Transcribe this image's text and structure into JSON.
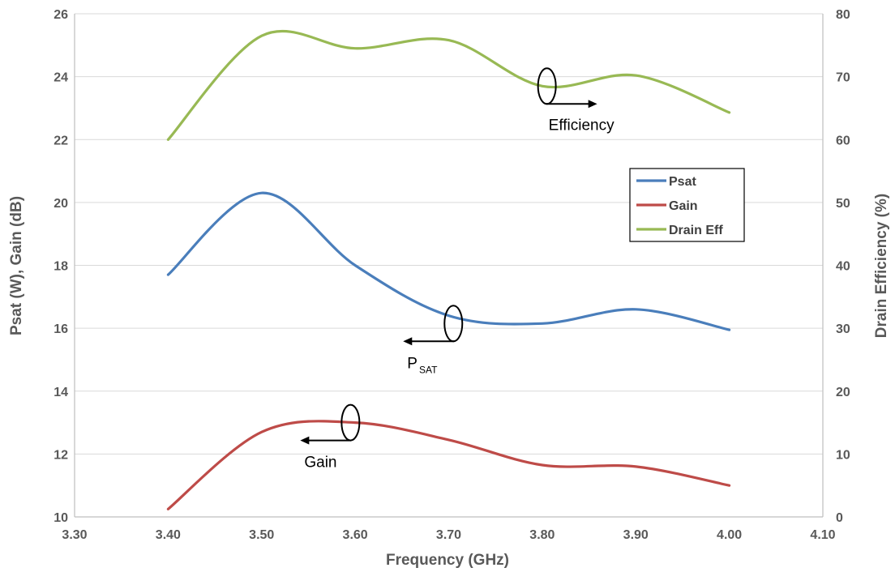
{
  "chart_data": {
    "type": "line",
    "xlabel": "Frequency (GHz)",
    "ylabel_left": "Psat (W), Gain (dB)",
    "ylabel_right": "Drain Efficiency (%)",
    "xlim": [
      3.3,
      4.1
    ],
    "ylim_left": [
      10,
      26
    ],
    "ylim_right": [
      0,
      80
    ],
    "x_ticks": [
      "3.30",
      "3.40",
      "3.50",
      "3.60",
      "3.70",
      "3.80",
      "3.90",
      "4.00",
      "4.10"
    ],
    "y_left_ticks": [
      "10",
      "12",
      "14",
      "16",
      "18",
      "20",
      "22",
      "24",
      "26"
    ],
    "y_right_ticks": [
      "0",
      "10",
      "20",
      "30",
      "40",
      "50",
      "60",
      "70",
      "80"
    ],
    "grid": "horizontal",
    "legend_position": "right",
    "x": [
      3.4,
      3.5,
      3.6,
      3.7,
      3.8,
      3.9,
      4.0
    ],
    "series": [
      {
        "name": "Psat",
        "axis": "left",
        "color": "#4a7ebb",
        "values": [
          17.7,
          20.3,
          18.0,
          16.4,
          16.15,
          16.6,
          15.95
        ]
      },
      {
        "name": "Gain",
        "axis": "left",
        "color": "#be4b48",
        "values": [
          10.25,
          12.7,
          13.0,
          12.45,
          11.65,
          11.6,
          11.0
        ]
      },
      {
        "name": "Drain Eff",
        "axis": "right",
        "color": "#98b954",
        "values": [
          60.0,
          76.5,
          74.5,
          75.8,
          68.5,
          70.2,
          64.3
        ]
      }
    ],
    "annotations": [
      {
        "text": "Efficiency",
        "arrow": "right",
        "x": 3.805,
        "y": 68.5,
        "axis": "right"
      },
      {
        "text": "P",
        "subscript": "SAT",
        "arrow": "left",
        "x": 3.705,
        "y": 16.15,
        "axis": "left"
      },
      {
        "text": "Gain",
        "arrow": "left",
        "x": 3.595,
        "y": 13.0,
        "axis": "left"
      }
    ]
  }
}
